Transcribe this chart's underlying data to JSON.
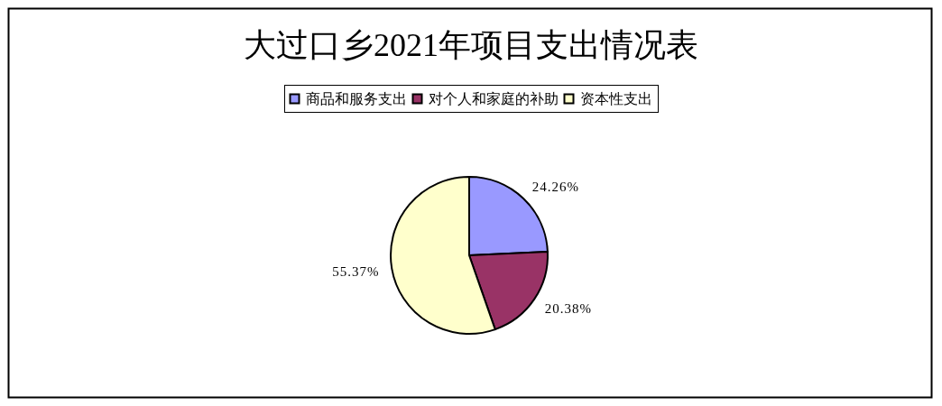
{
  "chart_data": {
    "type": "pie",
    "title": "大过口乡2021年项目支出情况表",
    "categories": [
      "商品和服务支出",
      "对个人和家庭的补助",
      "资本性支出"
    ],
    "values": [
      24.26,
      20.38,
      55.37
    ],
    "colors": [
      "#9999ff",
      "#993366",
      "#ffffcc"
    ],
    "value_labels": [
      "24.26%",
      "20.38%",
      "55.37%"
    ],
    "legend": "top"
  }
}
